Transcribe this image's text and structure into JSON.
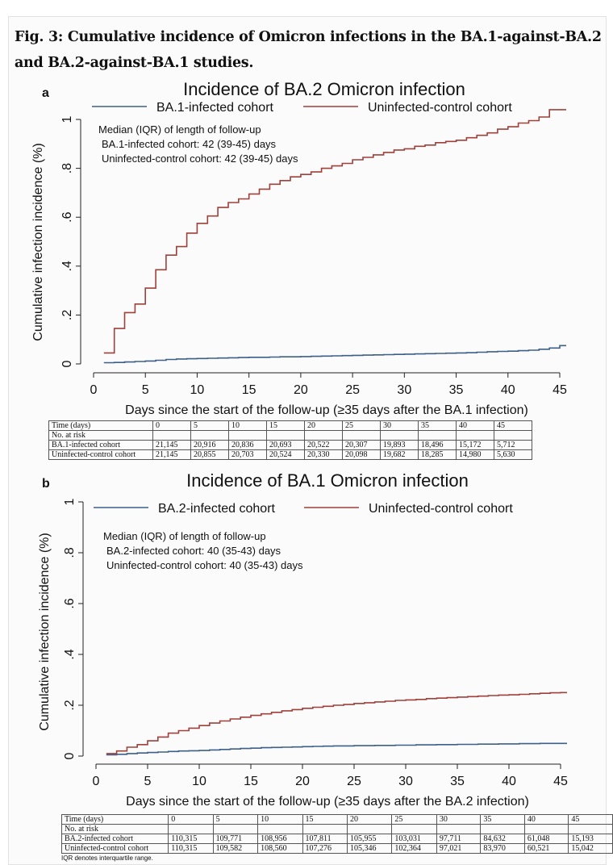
{
  "figure_title": "Fig. 3: Cumulative incidence of Omicron infections in the BA.1-against-BA.2 and BA.2-against-BA.1 studies.",
  "footnote": "IQR denotes interquartile range.",
  "chart_data": [
    {
      "panel": "a",
      "type": "line",
      "title": "Incidence of BA.2 Omicron infection",
      "xlabel": "Days since the start of the follow-up (≥35 days after the BA.1 infection)",
      "ylabel": "Cumulative infection incidence (%)",
      "xlim": [
        0,
        45
      ],
      "ylim": [
        0,
        1
      ],
      "xticks": [
        "0",
        "5",
        "10",
        "15",
        "20",
        "25",
        "30",
        "35",
        "40",
        "45"
      ],
      "yticks": [
        "0",
        ".2",
        ".4",
        ".6",
        ".8",
        "1"
      ],
      "grid": false,
      "legend_position": "top",
      "annotation": [
        "Median (IQR) of length of follow-up",
        "BA.1-infected cohort: 42 (39-45) days",
        "Uninfected-control cohort: 42 (39-45) days"
      ],
      "colors": {
        "infected": "#3d5f8a",
        "control": "#a0403a"
      },
      "series": [
        {
          "name": "BA.1-infected cohort",
          "color": "#3d5f8a",
          "x": [
            1,
            2,
            3,
            4,
            5,
            6,
            7,
            8,
            9,
            10,
            11,
            12,
            13,
            14,
            15,
            16,
            17,
            18,
            19,
            20,
            21,
            22,
            23,
            24,
            25,
            26,
            27,
            28,
            29,
            30,
            31,
            32,
            33,
            34,
            35,
            36,
            37,
            38,
            39,
            40,
            41,
            42,
            43,
            44,
            45
          ],
          "y": [
            0.005,
            0.006,
            0.008,
            0.01,
            0.012,
            0.015,
            0.018,
            0.02,
            0.021,
            0.022,
            0.023,
            0.024,
            0.025,
            0.026,
            0.027,
            0.027,
            0.028,
            0.029,
            0.029,
            0.03,
            0.031,
            0.032,
            0.033,
            0.034,
            0.035,
            0.036,
            0.037,
            0.038,
            0.039,
            0.04,
            0.041,
            0.042,
            0.043,
            0.044,
            0.045,
            0.046,
            0.048,
            0.05,
            0.051,
            0.052,
            0.054,
            0.056,
            0.06,
            0.065,
            0.075
          ]
        },
        {
          "name": "Uninfected-control cohort",
          "color": "#a0403a",
          "x": [
            1,
            2,
            3,
            4,
            5,
            6,
            7,
            8,
            9,
            10,
            11,
            12,
            13,
            14,
            15,
            16,
            17,
            18,
            19,
            20,
            21,
            22,
            23,
            24,
            25,
            26,
            27,
            28,
            29,
            30,
            31,
            32,
            33,
            34,
            35,
            36,
            37,
            38,
            39,
            40,
            41,
            42,
            43,
            44,
            45
          ],
          "y": [
            0.045,
            0.145,
            0.21,
            0.245,
            0.31,
            0.385,
            0.445,
            0.48,
            0.535,
            0.575,
            0.605,
            0.64,
            0.66,
            0.675,
            0.695,
            0.715,
            0.735,
            0.75,
            0.765,
            0.775,
            0.785,
            0.8,
            0.81,
            0.82,
            0.835,
            0.845,
            0.855,
            0.865,
            0.875,
            0.88,
            0.89,
            0.895,
            0.905,
            0.91,
            0.915,
            0.925,
            0.935,
            0.945,
            0.96,
            0.97,
            0.985,
            0.995,
            1.01,
            1.04,
            1.04
          ]
        }
      ],
      "risk_table": {
        "header": [
          "Time (days)",
          "0",
          "5",
          "10",
          "15",
          "20",
          "25",
          "30",
          "35",
          "40",
          "45"
        ],
        "subheader": "No. at risk",
        "rows": [
          [
            "BA.1-infected cohort",
            "21,145",
            "20,916",
            "20,836",
            "20,693",
            "20,522",
            "20,307",
            "19,893",
            "18,496",
            "15,172",
            "5,712"
          ],
          [
            "Uninfected-control cohort",
            "21,145",
            "20,855",
            "20,703",
            "20,524",
            "20,330",
            "20,098",
            "19,682",
            "18,285",
            "14,980",
            "5,630"
          ]
        ]
      }
    },
    {
      "panel": "b",
      "type": "line",
      "title": "Incidence of BA.1 Omicron infection",
      "xlabel": "Days since the start of the follow-up (≥35 days after the BA.2 infection)",
      "ylabel": "Cumulative infection incidence (%)",
      "xlim": [
        0,
        45
      ],
      "ylim": [
        0,
        1
      ],
      "xticks": [
        "0",
        "5",
        "10",
        "15",
        "20",
        "25",
        "30",
        "35",
        "40",
        "45"
      ],
      "yticks": [
        "0",
        ".2",
        ".4",
        ".6",
        ".8",
        "1"
      ],
      "grid": false,
      "legend_position": "top",
      "annotation": [
        "Median (IQR) of length of follow-up",
        "BA.2-infected cohort: 40 (35-43) days",
        "Uninfected-control cohort: 40 (35-43) days"
      ],
      "colors": {
        "infected": "#3d5f8a",
        "control": "#a0403a"
      },
      "series": [
        {
          "name": "BA.2-infected cohort",
          "color": "#3d5f8a",
          "x": [
            1,
            2,
            3,
            4,
            5,
            6,
            7,
            8,
            9,
            10,
            11,
            12,
            13,
            14,
            15,
            16,
            17,
            18,
            19,
            20,
            21,
            22,
            23,
            24,
            25,
            26,
            27,
            28,
            29,
            30,
            31,
            32,
            33,
            34,
            35,
            36,
            37,
            38,
            39,
            40,
            41,
            42,
            43,
            44,
            45
          ],
          "y": [
            0.005,
            0.007,
            0.01,
            0.012,
            0.014,
            0.016,
            0.018,
            0.02,
            0.021,
            0.022,
            0.024,
            0.026,
            0.028,
            0.03,
            0.031,
            0.033,
            0.034,
            0.035,
            0.036,
            0.037,
            0.038,
            0.039,
            0.04,
            0.04,
            0.041,
            0.041,
            0.042,
            0.042,
            0.043,
            0.043,
            0.044,
            0.044,
            0.045,
            0.045,
            0.046,
            0.046,
            0.047,
            0.047,
            0.048,
            0.048,
            0.049,
            0.049,
            0.05,
            0.05,
            0.05
          ]
        },
        {
          "name": "Uninfected-control cohort",
          "color": "#a0403a",
          "x": [
            1,
            2,
            3,
            4,
            5,
            6,
            7,
            8,
            9,
            10,
            11,
            12,
            13,
            14,
            15,
            16,
            17,
            18,
            19,
            20,
            21,
            22,
            23,
            24,
            25,
            26,
            27,
            28,
            29,
            30,
            31,
            32,
            33,
            34,
            35,
            36,
            37,
            38,
            39,
            40,
            41,
            42,
            43,
            44,
            45
          ],
          "y": [
            0.01,
            0.02,
            0.035,
            0.045,
            0.06,
            0.075,
            0.09,
            0.1,
            0.11,
            0.12,
            0.13,
            0.138,
            0.146,
            0.153,
            0.16,
            0.166,
            0.172,
            0.178,
            0.183,
            0.188,
            0.192,
            0.196,
            0.2,
            0.203,
            0.207,
            0.21,
            0.213,
            0.216,
            0.219,
            0.221,
            0.223,
            0.226,
            0.228,
            0.23,
            0.232,
            0.234,
            0.236,
            0.238,
            0.24,
            0.241,
            0.243,
            0.245,
            0.247,
            0.249,
            0.25
          ]
        }
      ],
      "risk_table": {
        "header": [
          "Time (days)",
          "0",
          "5",
          "10",
          "15",
          "20",
          "25",
          "30",
          "35",
          "40",
          "45"
        ],
        "subheader": "No. at risk",
        "rows": [
          [
            "BA.2-infected cohort",
            "110,315",
            "109,771",
            "108,956",
            "107,811",
            "105,955",
            "103,031",
            "97,711",
            "84,632",
            "61,048",
            "15,193"
          ],
          [
            "Uninfected-control cohort",
            "110,315",
            "109,582",
            "108,560",
            "107,276",
            "105,346",
            "102,364",
            "97,021",
            "83,970",
            "60,521",
            "15,042"
          ]
        ]
      }
    }
  ]
}
